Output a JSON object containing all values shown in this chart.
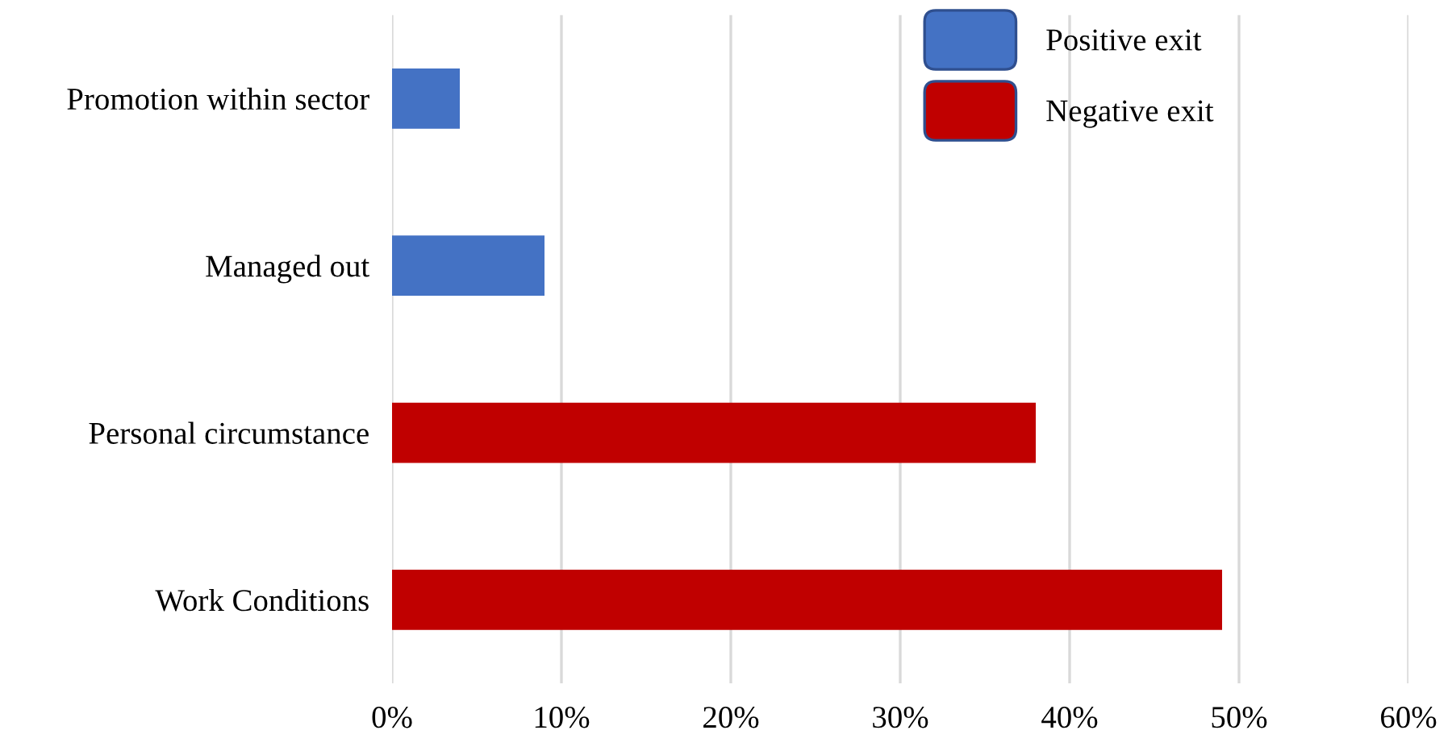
{
  "chart_data": {
    "type": "bar",
    "orientation": "horizontal",
    "categories": [
      "Promotion within sector",
      "Managed out",
      "Personal circumstance",
      "Work Conditions"
    ],
    "series": [
      {
        "name": "Positive exit",
        "color": "#4472c4",
        "values": [
          4,
          9,
          null,
          null
        ]
      },
      {
        "name": "Negative exit",
        "color": "#c00000",
        "values": [
          null,
          null,
          38,
          49
        ]
      }
    ],
    "xlim": [
      0,
      60
    ],
    "xticks": [
      {
        "value": 0,
        "label": "0%"
      },
      {
        "value": 10,
        "label": "10%"
      },
      {
        "value": 20,
        "label": "20%"
      },
      {
        "value": 30,
        "label": "30%"
      },
      {
        "value": 40,
        "label": "40%"
      },
      {
        "value": 50,
        "label": "50%"
      },
      {
        "value": 60,
        "label": "60%"
      }
    ],
    "grid": "x",
    "legend": "top right"
  }
}
